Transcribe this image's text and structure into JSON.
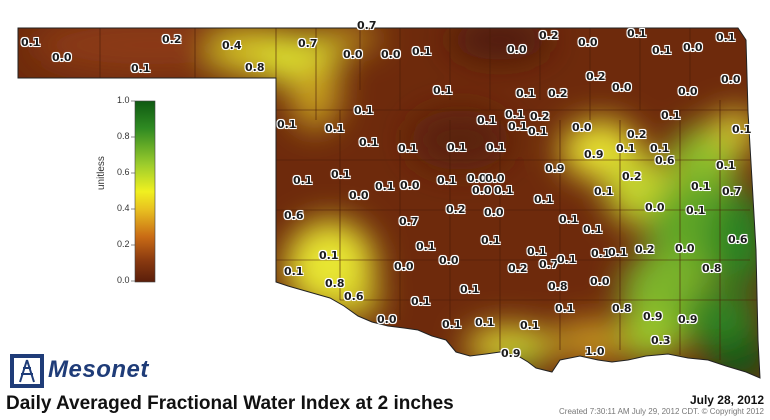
{
  "legend": {
    "axis_label": "unitless",
    "ticks": [
      "1.0",
      "0.8",
      "0.6",
      "0.4",
      "0.2",
      "0.0"
    ],
    "colors": [
      "#5a1e0a",
      "#8a3a10",
      "#c96b15",
      "#e8c020",
      "#f0f020",
      "#9ccc2c",
      "#2f8a22",
      "#0f5a12"
    ]
  },
  "logo": {
    "text": "Mesonet",
    "icon": "mesonet-tower-icon"
  },
  "title": "Daily Averaged Fractional Water Index at 2 inches",
  "date": "July 28, 2012",
  "created": "Created 7:30:11 AM July 29, 2012 CDT. © Copyright 2012",
  "stations": [
    "0.1",
    "0.0",
    "0.2",
    "0.4",
    "0.7",
    "0.7",
    "0.1",
    "0.8",
    "0.0",
    "0.0",
    "0.1",
    "0.0",
    "0.2",
    "0.0",
    "0.1",
    "0.1",
    "0.0",
    "0.1",
    "0.2",
    "0.0",
    "0.0",
    "0.1",
    "0.1",
    "0.2",
    "0.0",
    "0.1",
    "0.1",
    "0.1",
    "0.1",
    "0.1",
    "0.2",
    "0.1",
    "0.1",
    "0.1",
    "0.1",
    "0.0",
    "0.1",
    "0.1",
    "0.1",
    "0.1",
    "0.9",
    "0.1",
    "0.2",
    "0.1",
    "0.6",
    "0.2",
    "0.1",
    "0.1",
    "0.7",
    "0.9",
    "0.1",
    "0.1",
    "0.0",
    "0.1",
    "0.0",
    "0.1",
    "0.0",
    "0.0",
    "0.0",
    "0.1",
    "0.1",
    "0.1",
    "0.6",
    "0.7",
    "0.2",
    "0.0",
    "0.1",
    "0.1",
    "0.0",
    "0.1",
    "0.6",
    "0.8",
    "0.1",
    "0.1",
    "0.1",
    "0.0",
    "0.0",
    "0.2",
    "0.7",
    "0.1",
    "0.1",
    "0.1",
    "0.2",
    "0.0",
    "0.1",
    "0.1",
    "0.8",
    "0.6",
    "0.1",
    "0.8",
    "0.0",
    "0.1",
    "0.0",
    "0.1",
    "0.1",
    "0.1",
    "0.1",
    "0.8",
    "0.9",
    "0.9",
    "0.3",
    "0.9",
    "1.0"
  ]
}
